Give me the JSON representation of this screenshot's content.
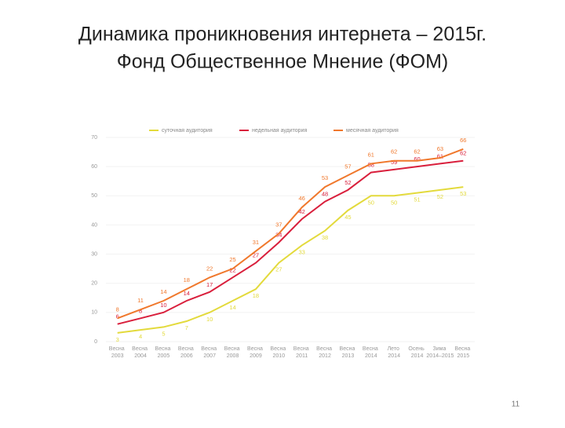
{
  "title_lines": [
    "Динамика проникновения интернета – 2015г.",
    "Фонд Общественное Мнение (ФОМ)"
  ],
  "page_number": "11",
  "chart_data": {
    "type": "line",
    "categories": [
      "Весна 2003",
      "Весна 2004",
      "Весна 2005",
      "Весна 2006",
      "Весна 2007",
      "Весна 2008",
      "Весна 2009",
      "Весна 2010",
      "Весна 2011",
      "Весна 2012",
      "Весна 2013",
      "Весна 2014",
      "Лето 2014",
      "Осень 2014",
      "Зима 2014–2015",
      "Весна 2015"
    ],
    "series": [
      {
        "name": "суточная аудитория",
        "color": "#e3da3c",
        "values": [
          3,
          4,
          5,
          7,
          10,
          14,
          18,
          27,
          33,
          38,
          45,
          50,
          50,
          51,
          52,
          53
        ]
      },
      {
        "name": "недельная аудитория",
        "color": "#d91f3c",
        "values": [
          6,
          8,
          10,
          14,
          17,
          22,
          27,
          34,
          42,
          48,
          52,
          58,
          59,
          60,
          61,
          62
        ]
      },
      {
        "name": "месячная аудитория",
        "color": "#f0782c",
        "values": [
          8,
          11,
          14,
          18,
          22,
          25,
          31,
          37,
          46,
          53,
          57,
          61,
          62,
          62,
          63,
          66
        ]
      }
    ],
    "ylim": [
      0,
      70
    ],
    "yticks": [
      0,
      10,
      20,
      30,
      40,
      50,
      60,
      70
    ],
    "grid": true,
    "legend": "top"
  }
}
